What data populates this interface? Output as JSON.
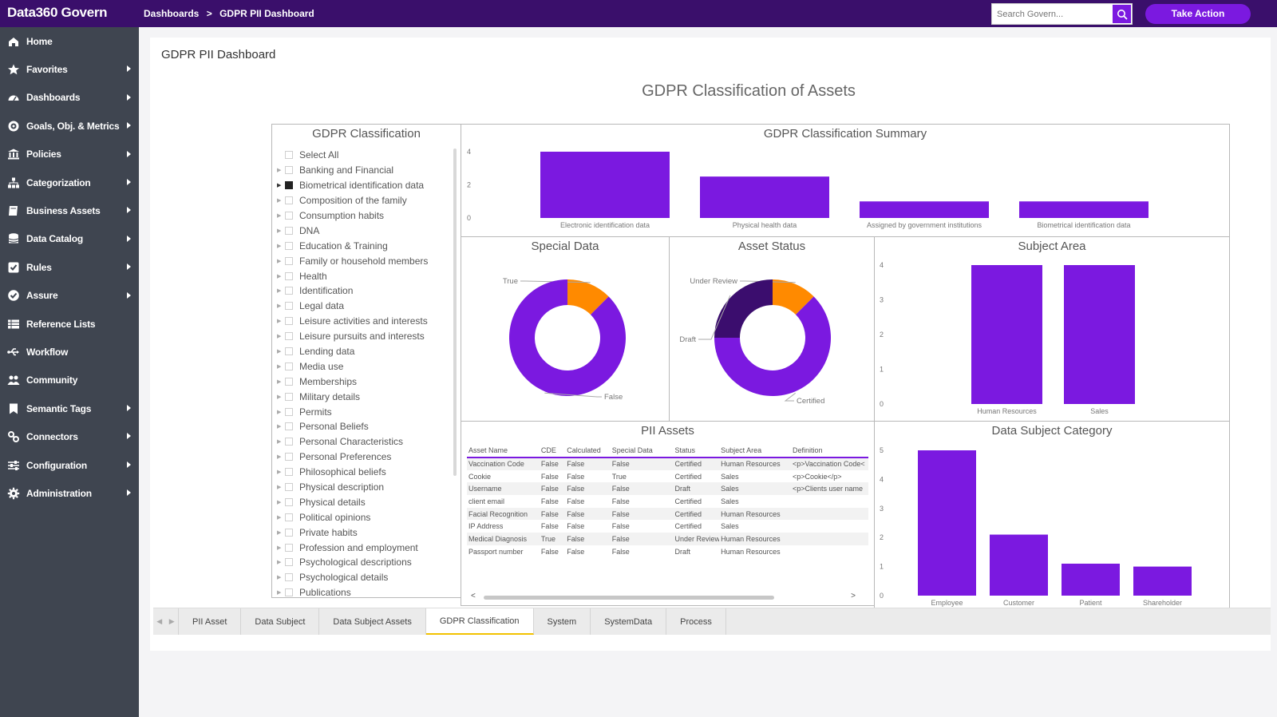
{
  "app": {
    "title": "Data360 Govern"
  },
  "breadcrumb": {
    "items": [
      "Dashboards",
      "GDPR PII Dashboard"
    ],
    "separator": ">"
  },
  "search": {
    "placeholder": "Search Govern..."
  },
  "header": {
    "action_label": "Take Action"
  },
  "colors": {
    "brand_dark": "#3a0f6b",
    "accent": "#7b19e0",
    "orange": "#ff8a00",
    "dark_purple": "#3b0d6e"
  },
  "sidebar": {
    "items": [
      {
        "label": "Home",
        "icon": "home-icon",
        "submenu": false
      },
      {
        "label": "Favorites",
        "icon": "star-icon",
        "submenu": true
      },
      {
        "label": "Dashboards",
        "icon": "dashboard-gauge-icon",
        "submenu": true
      },
      {
        "label": "Goals, Obj. & Metrics",
        "icon": "target-icon",
        "submenu": true
      },
      {
        "label": "Policies",
        "icon": "institution-icon",
        "submenu": true
      },
      {
        "label": "Categorization",
        "icon": "hierarchy-icon",
        "submenu": true
      },
      {
        "label": "Business Assets",
        "icon": "book-icon",
        "submenu": true
      },
      {
        "label": "Data Catalog",
        "icon": "database-icon",
        "submenu": true
      },
      {
        "label": "Rules",
        "icon": "checkbox-icon",
        "submenu": true
      },
      {
        "label": "Assure",
        "icon": "check-circle-icon",
        "submenu": true
      },
      {
        "label": "Reference Lists",
        "icon": "list-icon",
        "submenu": false
      },
      {
        "label": "Workflow",
        "icon": "usb-icon",
        "submenu": false
      },
      {
        "label": "Community",
        "icon": "users-icon",
        "submenu": false
      },
      {
        "label": "Semantic Tags",
        "icon": "bookmark-icon",
        "submenu": true
      },
      {
        "label": "Connectors",
        "icon": "link-icon",
        "submenu": true
      },
      {
        "label": "Configuration",
        "icon": "sliders-icon",
        "submenu": true
      },
      {
        "label": "Administration",
        "icon": "gear-icon",
        "submenu": true
      }
    ]
  },
  "page": {
    "title": "GDPR PII Dashboard",
    "report_title": "GDPR Classification of Assets"
  },
  "slicer": {
    "title": "GDPR Classification",
    "items": [
      {
        "label": "Select All",
        "checked": false,
        "expandable": false
      },
      {
        "label": "Banking and Financial",
        "checked": false,
        "expandable": true
      },
      {
        "label": "Biometrical identification data",
        "checked": true,
        "expandable": true
      },
      {
        "label": "Composition of the family",
        "checked": false,
        "expandable": true
      },
      {
        "label": "Consumption habits",
        "checked": false,
        "expandable": true
      },
      {
        "label": "DNA",
        "checked": false,
        "expandable": true
      },
      {
        "label": "Education & Training",
        "checked": false,
        "expandable": true
      },
      {
        "label": "Family or household members",
        "checked": false,
        "expandable": true
      },
      {
        "label": "Health",
        "checked": false,
        "expandable": true
      },
      {
        "label": "Identification",
        "checked": false,
        "expandable": true
      },
      {
        "label": "Legal data",
        "checked": false,
        "expandable": true
      },
      {
        "label": "Leisure activities and interests",
        "checked": false,
        "expandable": true
      },
      {
        "label": "Leisure pursuits and interests",
        "checked": false,
        "expandable": true
      },
      {
        "label": "Lending data",
        "checked": false,
        "expandable": true
      },
      {
        "label": "Media use",
        "checked": false,
        "expandable": true
      },
      {
        "label": "Memberships",
        "checked": false,
        "expandable": true
      },
      {
        "label": "Military details",
        "checked": false,
        "expandable": true
      },
      {
        "label": "Permits",
        "checked": false,
        "expandable": true
      },
      {
        "label": "Personal Beliefs",
        "checked": false,
        "expandable": true
      },
      {
        "label": "Personal Characteristics",
        "checked": false,
        "expandable": true
      },
      {
        "label": "Personal Preferences",
        "checked": false,
        "expandable": true
      },
      {
        "label": "Philosophical beliefs",
        "checked": false,
        "expandable": true
      },
      {
        "label": "Physical description",
        "checked": false,
        "expandable": true
      },
      {
        "label": "Physical details",
        "checked": false,
        "expandable": true
      },
      {
        "label": "Political opinions",
        "checked": false,
        "expandable": true
      },
      {
        "label": "Private habits",
        "checked": false,
        "expandable": true
      },
      {
        "label": "Profession and employment",
        "checked": false,
        "expandable": true
      },
      {
        "label": "Psychological descriptions",
        "checked": false,
        "expandable": true
      },
      {
        "label": "Psychological details",
        "checked": false,
        "expandable": true
      },
      {
        "label": "Publications",
        "checked": false,
        "expandable": true
      }
    ]
  },
  "chart_data": [
    {
      "type": "bar",
      "title": "GDPR Classification Summary",
      "categories": [
        "Electronic identification data",
        "Physical health data",
        "Assigned by government institutions",
        "Biometrical identification data"
      ],
      "values": [
        4,
        2.5,
        1,
        1
      ],
      "ylim": [
        0,
        4
      ],
      "yticks": [
        0,
        2,
        4
      ]
    },
    {
      "type": "pie",
      "title": "Special Data",
      "labels": [
        "True",
        "False"
      ],
      "values": [
        1,
        7
      ],
      "colors": [
        "#ff8a00",
        "#7b19e0"
      ]
    },
    {
      "type": "pie",
      "title": "Asset Status",
      "labels": [
        "Under Review",
        "Certified",
        "Draft"
      ],
      "values": [
        1,
        5,
        2
      ],
      "colors": [
        "#ff8a00",
        "#7b19e0",
        "#3b0d6e"
      ]
    },
    {
      "type": "bar",
      "title": "Subject Area",
      "categories": [
        "Human Resources",
        "Sales"
      ],
      "values": [
        4,
        4
      ],
      "ylim": [
        0,
        4
      ],
      "yticks": [
        0,
        1,
        2,
        3,
        4
      ]
    },
    {
      "type": "bar",
      "title": "Data Subject Category",
      "categories": [
        "Employee",
        "Customer",
        "Patient",
        "Shareholder"
      ],
      "values": [
        5,
        2.1,
        1.1,
        1
      ],
      "ylim": [
        0,
        5
      ],
      "yticks": [
        0,
        1,
        2,
        3,
        4,
        5
      ]
    },
    {
      "type": "table",
      "title": "PII Assets",
      "columns": [
        "Asset Name",
        "CDE",
        "Calculated",
        "Special Data",
        "Status",
        "Subject Area",
        "Definition"
      ],
      "rows": [
        [
          "Vaccination Code",
          "False",
          "False",
          "False",
          "Certified",
          "Human Resources",
          "<p>Vaccination Code<"
        ],
        [
          "Cookie",
          "False",
          "False",
          "True",
          "Certified",
          "Sales",
          "<p>Cookie</p>"
        ],
        [
          "Username",
          "False",
          "False",
          "False",
          "Draft",
          "Sales",
          "<p>Clients user name"
        ],
        [
          "client email",
          "False",
          "False",
          "False",
          "Certified",
          "Sales",
          ""
        ],
        [
          "Facial Recognition",
          "False",
          "False",
          "False",
          "Certified",
          "Human Resources",
          ""
        ],
        [
          "IP Address",
          "False",
          "False",
          "False",
          "Certified",
          "Sales",
          ""
        ],
        [
          "Medical Diagnosis",
          "True",
          "False",
          "False",
          "Under Review",
          "Human Resources",
          ""
        ],
        [
          "Passport number",
          "False",
          "False",
          "False",
          "Draft",
          "Human Resources",
          ""
        ]
      ]
    }
  ],
  "tabs": {
    "nav_prev": "◀",
    "nav_next": "▶",
    "items": [
      "PII Asset",
      "Data Subject",
      "Data Subject Assets",
      "GDPR Classification",
      "System",
      "SystemData",
      "Process"
    ],
    "active": "GDPR Classification"
  },
  "table_scroll": {
    "left": "<",
    "right": ">"
  }
}
